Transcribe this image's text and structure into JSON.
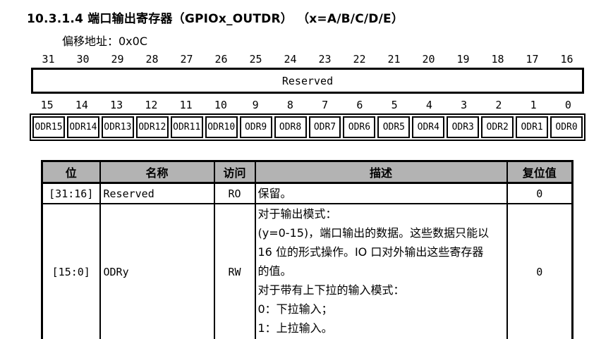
{
  "page": {
    "title": "10.3.1.4 端口输出寄存器（GPIOx_OUTDR） （x=A/B/C/D/E）",
    "offset_label": "偏移地址：0x0C"
  },
  "bitfield": {
    "high_bits": [
      "31",
      "30",
      "29",
      "28",
      "27",
      "26",
      "25",
      "24",
      "23",
      "22",
      "21",
      "20",
      "19",
      "18",
      "17",
      "16"
    ],
    "reserved_label": "Reserved",
    "low_bits": [
      "15",
      "14",
      "13",
      "12",
      "11",
      "10",
      "9",
      "8",
      "7",
      "6",
      "5",
      "4",
      "3",
      "2",
      "1",
      "0"
    ],
    "low_cells": [
      "ODR15",
      "ODR14",
      "ODR13",
      "ODR12",
      "ODR11",
      "ODR10",
      "ODR9",
      "ODR8",
      "ODR7",
      "ODR6",
      "ODR5",
      "ODR4",
      "ODR3",
      "ODR2",
      "ODR1",
      "ODR0"
    ]
  },
  "table": {
    "headers": [
      "位",
      "名称",
      "访问",
      "描述",
      "复位值"
    ],
    "rows": [
      {
        "bit": "[31:16]",
        "name": "Reserved",
        "access": "RO",
        "desc_lines": [
          "保留。"
        ],
        "reset": "0"
      },
      {
        "bit": "[15:0]",
        "name": "ODRy",
        "access": "RW",
        "desc_lines": [
          "对于输出模式：",
          "(y=0-15)，端口输出的数据。这些数据只能以",
          "16 位的形式操作。IO 口对外输出这些寄存器",
          "的值。",
          "对于带有上下拉的输入模式：",
          "0：下拉输入；",
          "1：上拉输入。"
        ],
        "reset": "0"
      }
    ]
  },
  "colors": {
    "header_bg": "#b3b3b3",
    "border": "#000000",
    "text": "#000000"
  }
}
